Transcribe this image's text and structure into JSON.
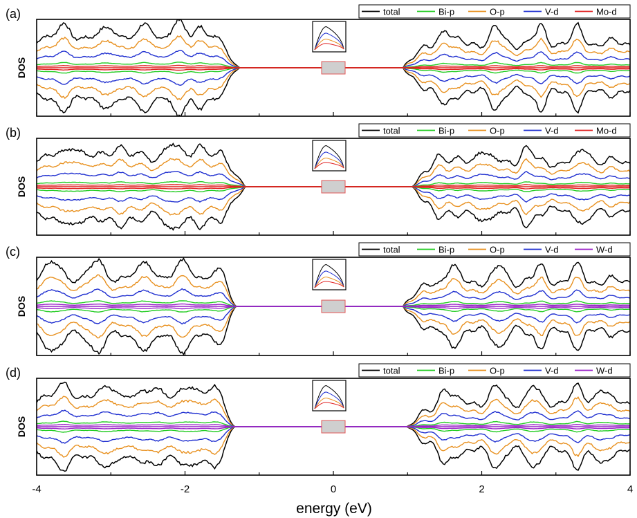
{
  "chart_data": {
    "type": "line",
    "figure": "multi-panel density of states",
    "xlabel": "energy (eV)",
    "xlim": [
      -4,
      4
    ],
    "xticks": [
      -4,
      -2,
      0,
      2,
      4
    ],
    "xtick_labels": [
      "-4",
      "-2",
      "0",
      "2",
      "4"
    ],
    "colors": {
      "total": "#000000",
      "Bi-p": "#22cc22",
      "O-p": "#e8901e",
      "V-d": "#1f2fd0",
      "Mo-d": "#e02020",
      "W-d": "#9a22c8"
    },
    "panels": [
      {
        "label": "(a)",
        "ylabel": "DOS",
        "legend": [
          "total",
          "Bi-p",
          "O-p",
          "V-d",
          "Mo-d"
        ],
        "valence_edge": -1.25,
        "conduction_edge": 0.9,
        "valence_peaks": [
          -3.6,
          -3.0,
          -2.5,
          -2.1,
          -1.8
        ],
        "conduction_peaks": [
          1.5,
          2.2,
          2.8,
          3.3
        ]
      },
      {
        "label": "(b)",
        "ylabel": "DOS",
        "legend": [
          "total",
          "Bi-p",
          "O-p",
          "V-d",
          "Mo-d"
        ],
        "valence_edge": -1.15,
        "conduction_edge": 1.05,
        "valence_peaks": [
          -3.5,
          -2.9,
          -2.2,
          -1.8
        ],
        "conduction_peaks": [
          1.4,
          2.0,
          2.6,
          3.4
        ]
      },
      {
        "label": "(c)",
        "ylabel": "DOS",
        "legend": [
          "total",
          "Bi-p",
          "O-p",
          "V-d",
          "W-d"
        ],
        "valence_edge": -1.3,
        "conduction_edge": 0.9,
        "valence_peaks": [
          -3.8,
          -3.2,
          -2.5,
          -2.0,
          -1.5
        ],
        "conduction_peaks": [
          1.6,
          2.25,
          2.8,
          3.3
        ]
      },
      {
        "label": "(d)",
        "ylabel": "DOS",
        "legend": [
          "total",
          "Bi-p",
          "O-p",
          "V-d",
          "W-d"
        ],
        "valence_edge": -1.3,
        "conduction_edge": 1.0,
        "valence_peaks": [
          -3.6,
          -3.0,
          -2.4,
          -1.9,
          -1.6
        ],
        "conduction_peaks": [
          1.5,
          2.2,
          2.7,
          3.3,
          3.6
        ]
      }
    ]
  }
}
